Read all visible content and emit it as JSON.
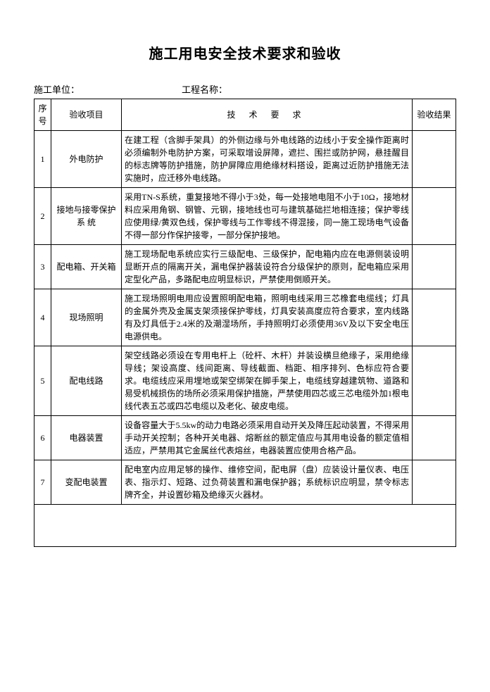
{
  "title": "施工用电安全技术要求和验收",
  "header": {
    "org_label": "施工单位：",
    "project_label": "工程名称："
  },
  "table": {
    "columns": {
      "no": "序号",
      "item": "验收项目",
      "req": "技 术 要 求",
      "result": "验收结果"
    },
    "rows": [
      {
        "no": "1",
        "item": "外电防护",
        "req": "在建工程（含脚手架具）的外侧边缘与外电线路的边线小于安全操作距离时必须编制外电防护方案，可采取增设屏障，遮拦、围拦或防护网，悬挂醒目的标志牌等防护措施，防护屏障应用绝缘材料搭设，距离过近防护措施无法实施时，应迁移外电线路。",
        "result": ""
      },
      {
        "no": "2",
        "item": "接地与接零保护系 统",
        "req": "采用TN-S系统，重复接地不得小于3处，每一处接地电阻不小于10Ω，接地材料应采用角钢、钢管、元钢，接地线也可与建筑基础拦地相连接；保护零线应使用绿/黄双色线，保护零线与工作零线不得混接，同一施工现场电气设备不得一部分作保护接零，一部分保护接地。",
        "result": ""
      },
      {
        "no": "3",
        "item": "配电箱、开关箱",
        "req": "施工现场配电系统应实行三级配电、三级保护，配电箱内应在电源侧装设明显断开点的隔离开关，漏电保护器装设符合分级保护的原则，配电箱应采用定型化产品，多路配电应明显标识，严禁使用倒顺开关。",
        "result": ""
      },
      {
        "no": "4",
        "item": "现场照明",
        "req": "施工现场照明电用应设置照明配电箱，照明电线采用三芯橡套电缆线；灯具的金属外壳及金属支架须接保护零线，灯具安装高度应符合要求，室内线路有及灯具低于2.4米的及潮湿场所，手持照明灯必须使用36V及以下安全电压电源供电。",
        "result": ""
      },
      {
        "no": "5",
        "item": "配电线路",
        "req": "架空线路必须设在专用电杆上（砼杆、木杆）并装设横旦绝缘子，采用绝缘导线；架设高度、线间距离、导线截面、档距、相序排列、色标应符合要求。电缆线应采用埋地或架空绑架在脚手架上，电缆线穿越建筑物、道路和易受机械损伤的场所必须采用保护措施，严禁使用四芯或三芯电缆外加1根电线代表五芯或四芯电缆以及老化、破皮电缆。",
        "result": ""
      },
      {
        "no": "6",
        "item": "电器装置",
        "req": "设备容量大于5.5kw的动力电路必须采用自动开关及降压起动装置，不得采用手动开关控制；各种开关电器、熔断丝的额定值应与其用电设备的额定值相适应，严禁用其它金属丝代表熔丝，电器装置应使用合格产品。",
        "result": ""
      },
      {
        "no": "7",
        "item": "变配电装置",
        "req": "配电室内应用足够的操作、维修空间，配电屏（盘）应装设计量仪表、电压表、指示灯、短路、过负荷装置和漏电保护器；系统标识应明显，禁令标志牌齐全，并设置砂箱及绝缘灭火器材。",
        "result": ""
      }
    ]
  },
  "style": {
    "background_color": "#ffffff",
    "text_color": "#000000",
    "border_color": "#000000",
    "title_fontsize": 20,
    "body_fontsize": 12,
    "header_fontsize": 13
  }
}
